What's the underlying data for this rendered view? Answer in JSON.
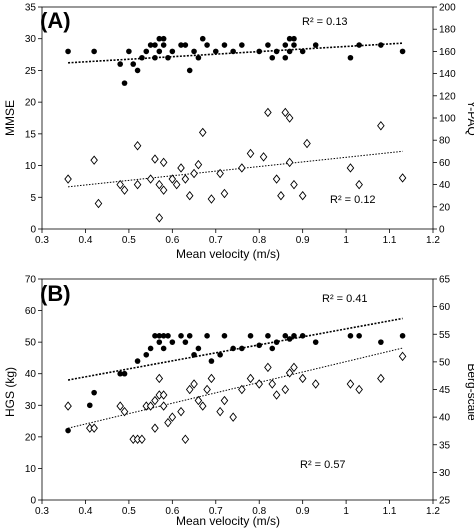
{
  "chart_data": [
    {
      "type": "scatter",
      "panel_label": "(A)",
      "xlabel": "Mean velocity (m/s)",
      "ylabel": "MMSE",
      "y2label": "Y-PAQ",
      "xlim": [
        0.3,
        1.2
      ],
      "xticks": [
        "0.3",
        "0.4",
        "0.5",
        "0.6",
        "0.7",
        "0.8",
        "0.9",
        "1",
        "1.1",
        "1.2"
      ],
      "ylim": [
        0,
        35
      ],
      "yticks": [
        "0",
        "5",
        "10",
        "15",
        "20",
        "25",
        "30",
        "35"
      ],
      "y2lim": [
        0,
        200
      ],
      "y2ticks": [
        "0",
        "20",
        "40",
        "60",
        "80",
        "100",
        "120",
        "140",
        "160",
        "180",
        "200"
      ],
      "grid": false,
      "series": [
        {
          "axis": "left",
          "marker": "filled-circle",
          "trend": {
            "x": [
              0.36,
              1.13
            ],
            "y": [
              26.2,
              29.3
            ]
          },
          "r2": "R² = 0.13",
          "points": [
            [
              0.36,
              28
            ],
            [
              0.42,
              28
            ],
            [
              0.48,
              26
            ],
            [
              0.49,
              23
            ],
            [
              0.5,
              28
            ],
            [
              0.51,
              26
            ],
            [
              0.52,
              25
            ],
            [
              0.53,
              27
            ],
            [
              0.54,
              28
            ],
            [
              0.55,
              29
            ],
            [
              0.56,
              27
            ],
            [
              0.56,
              29
            ],
            [
              0.57,
              28
            ],
            [
              0.57,
              30
            ],
            [
              0.58,
              30
            ],
            [
              0.58,
              29
            ],
            [
              0.59,
              27
            ],
            [
              0.6,
              28
            ],
            [
              0.62,
              29
            ],
            [
              0.63,
              29
            ],
            [
              0.64,
              25
            ],
            [
              0.65,
              28
            ],
            [
              0.66,
              27
            ],
            [
              0.67,
              30
            ],
            [
              0.68,
              29
            ],
            [
              0.7,
              28
            ],
            [
              0.72,
              29
            ],
            [
              0.74,
              28
            ],
            [
              0.76,
              29
            ],
            [
              0.8,
              28
            ],
            [
              0.82,
              29
            ],
            [
              0.83,
              27
            ],
            [
              0.84,
              28
            ],
            [
              0.86,
              27
            ],
            [
              0.86,
              29
            ],
            [
              0.87,
              30
            ],
            [
              0.87,
              28
            ],
            [
              0.88,
              29
            ],
            [
              0.88,
              30
            ],
            [
              0.9,
              28
            ],
            [
              0.93,
              29
            ],
            [
              1.01,
              27
            ],
            [
              1.03,
              29
            ],
            [
              1.08,
              29
            ],
            [
              1.13,
              28
            ]
          ]
        },
        {
          "axis": "right",
          "marker": "open-diamond",
          "trend": {
            "x": [
              0.36,
              1.13
            ],
            "y": [
              38,
              70
            ]
          },
          "r2": "R² = 0.12",
          "points": [
            [
              0.36,
              45
            ],
            [
              0.42,
              62
            ],
            [
              0.43,
              23
            ],
            [
              0.48,
              40
            ],
            [
              0.49,
              35
            ],
            [
              0.52,
              75
            ],
            [
              0.52,
              40
            ],
            [
              0.55,
              45
            ],
            [
              0.56,
              63
            ],
            [
              0.57,
              40
            ],
            [
              0.57,
              10
            ],
            [
              0.58,
              35
            ],
            [
              0.58,
              60
            ],
            [
              0.6,
              45
            ],
            [
              0.61,
              40
            ],
            [
              0.62,
              55
            ],
            [
              0.63,
              45
            ],
            [
              0.64,
              30
            ],
            [
              0.65,
              50
            ],
            [
              0.66,
              58
            ],
            [
              0.67,
              87
            ],
            [
              0.69,
              27
            ],
            [
              0.71,
              50
            ],
            [
              0.72,
              32
            ],
            [
              0.76,
              55
            ],
            [
              0.78,
              68
            ],
            [
              0.81,
              65
            ],
            [
              0.82,
              105
            ],
            [
              0.84,
              45
            ],
            [
              0.85,
              30
            ],
            [
              0.86,
              105
            ],
            [
              0.87,
              100
            ],
            [
              0.87,
              60
            ],
            [
              0.88,
              40
            ],
            [
              0.9,
              30
            ],
            [
              0.91,
              77
            ],
            [
              1.01,
              55
            ],
            [
              1.03,
              40
            ],
            [
              1.08,
              93
            ],
            [
              1.13,
              46
            ]
          ]
        }
      ]
    },
    {
      "type": "scatter",
      "panel_label": "(B)",
      "xlabel": "Mean velocity (m/s)",
      "ylabel": "HGS (kg)",
      "y2label": "Berg-scale",
      "xlim": [
        0.3,
        1.2
      ],
      "xticks": [
        "0.3",
        "0.4",
        "0.5",
        "0.6",
        "0.7",
        "0.8",
        "0.9",
        "1",
        "1.1",
        "1.2"
      ],
      "ylim": [
        0,
        70
      ],
      "yticks": [
        "0",
        "10",
        "20",
        "30",
        "40",
        "50",
        "60",
        "70"
      ],
      "y2lim": [
        25,
        65
      ],
      "y2ticks": [
        "25",
        "30",
        "35",
        "40",
        "45",
        "50",
        "55",
        "60",
        "65"
      ],
      "grid": false,
      "series": [
        {
          "axis": "left",
          "marker": "filled-circle",
          "trend": {
            "x": [
              0.36,
              1.13
            ],
            "y": [
              38,
              57.5
            ]
          },
          "r2": "R² = 0.41",
          "points": [
            [
              0.36,
              22
            ],
            [
              0.41,
              30
            ],
            [
              0.42,
              34
            ],
            [
              0.48,
              40
            ],
            [
              0.49,
              40
            ],
            [
              0.52,
              44
            ],
            [
              0.54,
              46
            ],
            [
              0.55,
              48
            ],
            [
              0.56,
              52
            ],
            [
              0.57,
              52
            ],
            [
              0.57,
              50
            ],
            [
              0.58,
              52
            ],
            [
              0.58,
              48
            ],
            [
              0.59,
              52
            ],
            [
              0.6,
              50
            ],
            [
              0.62,
              52
            ],
            [
              0.63,
              50
            ],
            [
              0.64,
              52
            ],
            [
              0.65,
              46
            ],
            [
              0.66,
              48
            ],
            [
              0.68,
              52
            ],
            [
              0.69,
              44
            ],
            [
              0.71,
              46
            ],
            [
              0.72,
              52
            ],
            [
              0.74,
              48
            ],
            [
              0.76,
              48
            ],
            [
              0.78,
              52
            ],
            [
              0.8,
              49
            ],
            [
              0.82,
              52
            ],
            [
              0.83,
              48
            ],
            [
              0.84,
              50
            ],
            [
              0.86,
              52
            ],
            [
              0.87,
              51
            ],
            [
              0.88,
              52
            ],
            [
              0.9,
              52
            ],
            [
              0.93,
              50
            ],
            [
              1.01,
              52
            ],
            [
              1.03,
              52
            ],
            [
              1.08,
              50
            ],
            [
              1.13,
              52
            ]
          ]
        },
        {
          "axis": "right",
          "marker": "open-diamond",
          "trend": {
            "x": [
              0.36,
              1.13
            ],
            "y": [
              38,
              52.5
            ]
          },
          "r2": "R² = 0.57",
          "points": [
            [
              0.36,
              42
            ],
            [
              0.41,
              38
            ],
            [
              0.42,
              38
            ],
            [
              0.48,
              42
            ],
            [
              0.49,
              41
            ],
            [
              0.51,
              36
            ],
            [
              0.52,
              36
            ],
            [
              0.53,
              36
            ],
            [
              0.54,
              42
            ],
            [
              0.55,
              42
            ],
            [
              0.56,
              43
            ],
            [
              0.56,
              38
            ],
            [
              0.57,
              44
            ],
            [
              0.57,
              47
            ],
            [
              0.58,
              42
            ],
            [
              0.58,
              44
            ],
            [
              0.59,
              39
            ],
            [
              0.6,
              40
            ],
            [
              0.62,
              41
            ],
            [
              0.63,
              36
            ],
            [
              0.64,
              45
            ],
            [
              0.65,
              46
            ],
            [
              0.66,
              43
            ],
            [
              0.67,
              42
            ],
            [
              0.68,
              45
            ],
            [
              0.69,
              47
            ],
            [
              0.71,
              41
            ],
            [
              0.72,
              43
            ],
            [
              0.74,
              40
            ],
            [
              0.76,
              45
            ],
            [
              0.78,
              47
            ],
            [
              0.8,
              46
            ],
            [
              0.82,
              49
            ],
            [
              0.83,
              46
            ],
            [
              0.84,
              44
            ],
            [
              0.86,
              45
            ],
            [
              0.87,
              48
            ],
            [
              0.88,
              49
            ],
            [
              0.9,
              47
            ],
            [
              0.93,
              46
            ],
            [
              1.01,
              46
            ],
            [
              1.03,
              45
            ],
            [
              1.08,
              47
            ],
            [
              1.13,
              51
            ]
          ]
        }
      ]
    }
  ]
}
